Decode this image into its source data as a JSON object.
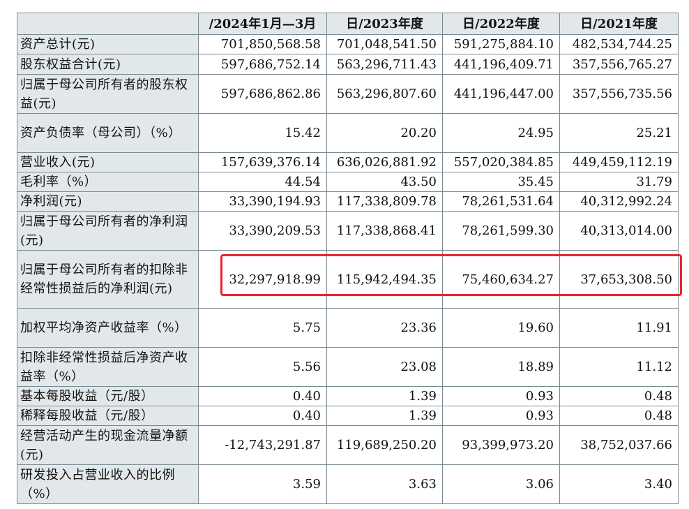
{
  "headers": [
    "",
    "/2024年1月—3月",
    "日/2023年度",
    "日/2022年度",
    "日/2021年度"
  ],
  "rows": [
    {
      "label": "资产总计(元)",
      "values": [
        "701,850,568.58",
        "701,048,541.50",
        "591,275,884.10",
        "482,534,744.25"
      ]
    },
    {
      "label": "股东权益合计(元)",
      "values": [
        "597,686,752.14",
        "563,296,711.43",
        "441,196,409.71",
        "357,556,765.27"
      ]
    },
    {
      "label": "归属于母公司所有者的股东权益(元)",
      "values": [
        "597,686,862.86",
        "563,296,807.60",
        "441,196,447.00",
        "357,556,735.56"
      ]
    },
    {
      "label": "资产负债率（母公司）（%）",
      "values": [
        "15.42",
        "20.20",
        "24.95",
        "25.21"
      ]
    },
    {
      "label": "营业收入(元)",
      "values": [
        "157,639,376.14",
        "636,026,881.92",
        "557,020,384.85",
        "449,459,112.19"
      ]
    },
    {
      "label": "毛利率（%）",
      "values": [
        "44.54",
        "43.50",
        "35.45",
        "31.79"
      ]
    },
    {
      "label": "净利润(元)",
      "values": [
        "33,390,194.93",
        "117,338,809.78",
        "78,261,531.64",
        "40,312,992.24"
      ]
    },
    {
      "label": "归属于母公司所有者的净利润(元)",
      "values": [
        "33,390,209.53",
        "117,338,868.41",
        "78,261,599.30",
        "40,313,014.00"
      ]
    },
    {
      "label": "归属于母公司所有者的扣除非经常性损益后的净利润(元)",
      "values": [
        "32,297,918.99",
        "115,942,494.35",
        "75,460,634.27",
        "37,653,308.50"
      ]
    },
    {
      "label": "加权平均净资产收益率（%）",
      "values": [
        "5.75",
        "23.36",
        "19.60",
        "11.91"
      ]
    },
    {
      "label": "扣除非经常性损益后净资产收益率（%）",
      "values": [
        "5.56",
        "23.08",
        "18.89",
        "11.12"
      ]
    },
    {
      "label": "基本每股收益（元/股）",
      "values": [
        "0.40",
        "1.39",
        "0.93",
        "0.48"
      ]
    },
    {
      "label": "稀释每股收益（元/股）",
      "values": [
        "0.40",
        "1.39",
        "0.93",
        "0.48"
      ]
    },
    {
      "label": "经营活动产生的现金流量净额(元)",
      "values": [
        "-12,743,291.87",
        "119,689,250.20",
        "93,399,973.20",
        "38,752,037.66"
      ]
    },
    {
      "label": "研发投入占营业收入的比例（%）",
      "values": [
        "3.59",
        "3.63",
        "3.06",
        "3.40"
      ]
    }
  ],
  "highlight_color": "#e8252e"
}
